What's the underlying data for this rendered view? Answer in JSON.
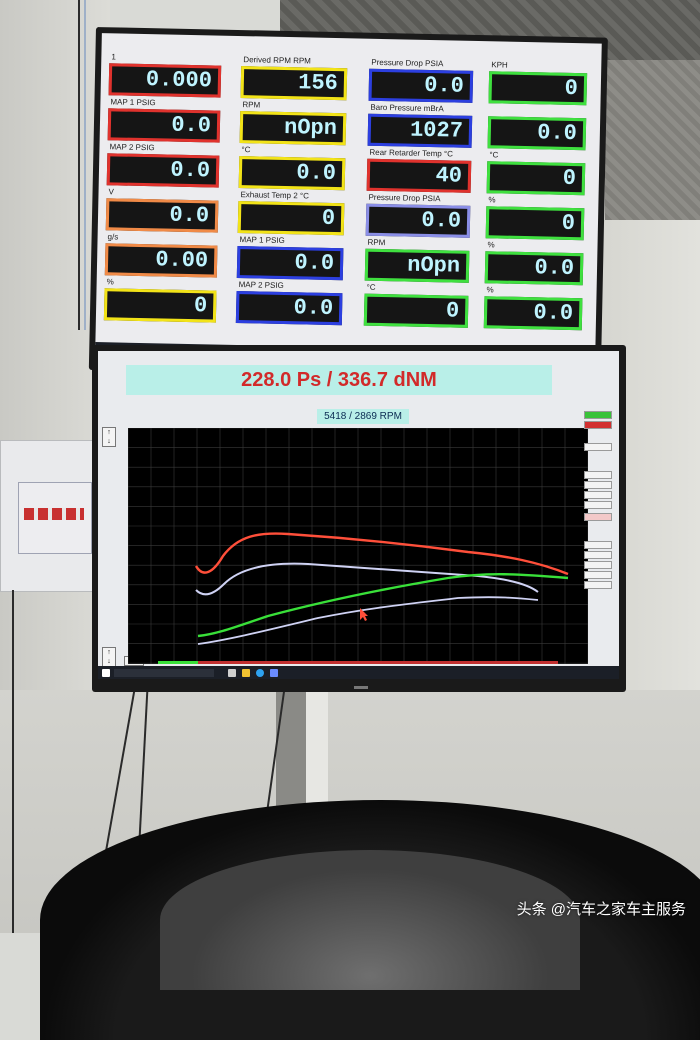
{
  "gauges": [
    {
      "label": "1",
      "value": "0.000",
      "border": "#e0322d"
    },
    {
      "label": "MAP 1 PSIG",
      "value": "0.0",
      "border": "#e0322d"
    },
    {
      "label": "MAP 2 PSIG",
      "value": "0.0",
      "border": "#e0322d"
    },
    {
      "label": "V",
      "value": "0.0",
      "border": "#f08a47"
    },
    {
      "label": "g/s",
      "value": "0.00",
      "border": "#f08a47"
    },
    {
      "label": "%",
      "value": "0",
      "border": "#f2e318"
    },
    {
      "label": "Derived RPM RPM",
      "value": "156",
      "border": "#f2e318"
    },
    {
      "label": "RPM",
      "value": "nOpn",
      "border": "#f2e318"
    },
    {
      "label": "°C",
      "value": "0.0",
      "border": "#f2e318"
    },
    {
      "label": "Exhaust Temp 2 °C",
      "value": "0",
      "border": "#f2e318"
    },
    {
      "label": "MAP 1 PSIG",
      "value": "0.0",
      "border": "#2c3fe0"
    },
    {
      "label": "MAP 2 PSIG",
      "value": "0.0",
      "border": "#2c3fe0"
    },
    {
      "label": "Pressure Drop PSIA",
      "value": "0.0",
      "border": "#2c3fe0"
    },
    {
      "label": "Baro Pressure mBrA",
      "value": "1027",
      "border": "#2c3fe0"
    },
    {
      "label": "Rear Retarder Temp °C",
      "value": "40",
      "border": "#e0322d"
    },
    {
      "label": "Pressure Drop PSIA",
      "value": "0.0",
      "border": "#8a8ee6"
    },
    {
      "label": "RPM",
      "value": "nOpn",
      "border": "#3fe03f"
    },
    {
      "label": "°C",
      "value": "0",
      "border": "#3fe03f"
    },
    {
      "label": "KPH",
      "value": "0",
      "border": "#3fe03f"
    },
    {
      "label": "",
      "value": "0.0",
      "border": "#3fe03f"
    },
    {
      "label": "°C",
      "value": "0",
      "border": "#3fe03f"
    },
    {
      "label": "%",
      "value": "0",
      "border": "#3fe03f"
    },
    {
      "label": "%",
      "value": "0.0",
      "border": "#3fe03f"
    },
    {
      "label": "%",
      "value": "0.0",
      "border": "#3fe03f"
    }
  ],
  "dyno": {
    "headline": "228.0 Ps  / 336.7 dNM",
    "rpm_readout": "5418 / 2869 RPM",
    "colors": {
      "power_run": "#ff4f3a",
      "power_ref": "#cfd2f4",
      "torque_run": "#39e039",
      "torque_ref": "#cfd2f4"
    }
  },
  "watermark": "头条 @汽车之家车主服务"
}
